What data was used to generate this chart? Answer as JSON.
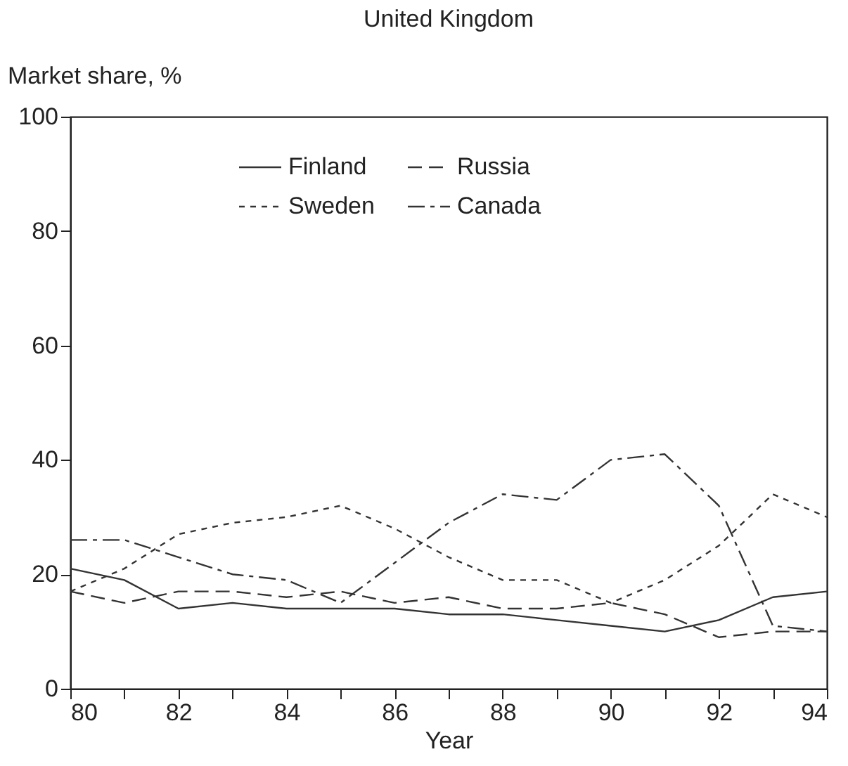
{
  "chart_data": {
    "type": "line",
    "title": "United Kingdom",
    "xlabel": "Year",
    "ylabel": "Market share, %",
    "x": [
      80,
      81,
      82,
      83,
      84,
      85,
      86,
      87,
      88,
      89,
      90,
      91,
      92,
      93,
      94
    ],
    "series": [
      {
        "name": "Finland",
        "color": "#333333",
        "line_style": "solid",
        "values": [
          21,
          19,
          14,
          15,
          14,
          14,
          14,
          13,
          13,
          12,
          11,
          10,
          12,
          16,
          17
        ]
      },
      {
        "name": "Russia",
        "color": "#333333",
        "line_style": "dashed",
        "values": [
          17,
          15,
          17,
          17,
          16,
          17,
          15,
          16,
          14,
          14,
          15,
          13,
          9,
          10,
          10
        ]
      },
      {
        "name": "Sweden",
        "color": "#333333",
        "line_style": "dotted",
        "values": [
          17,
          21,
          27,
          29,
          30,
          32,
          28,
          23,
          19,
          19,
          15,
          19,
          25,
          34,
          30
        ]
      },
      {
        "name": "Canada",
        "color": "#333333",
        "line_style": "dashdot",
        "values": [
          26,
          26,
          23,
          20,
          19,
          15,
          22,
          29,
          34,
          33,
          40,
          41,
          32,
          11,
          10
        ]
      }
    ],
    "xlim": [
      80,
      94
    ],
    "xticks": [
      80,
      {
        "value": 81,
        "label": null
      },
      82,
      {
        "value": 83,
        "label": null
      },
      84,
      {
        "value": 85,
        "label": null
      },
      86,
      {
        "value": 87,
        "label": null
      },
      88,
      {
        "value": 89,
        "label": null
      },
      90,
      {
        "value": 91,
        "label": null
      },
      92,
      {
        "value": 93,
        "label": null
      },
      94
    ],
    "ylim": [
      0,
      100
    ],
    "yticks": [
      0,
      20,
      40,
      60,
      80,
      100
    ],
    "grid": false,
    "legend": "top",
    "marker": "none"
  }
}
